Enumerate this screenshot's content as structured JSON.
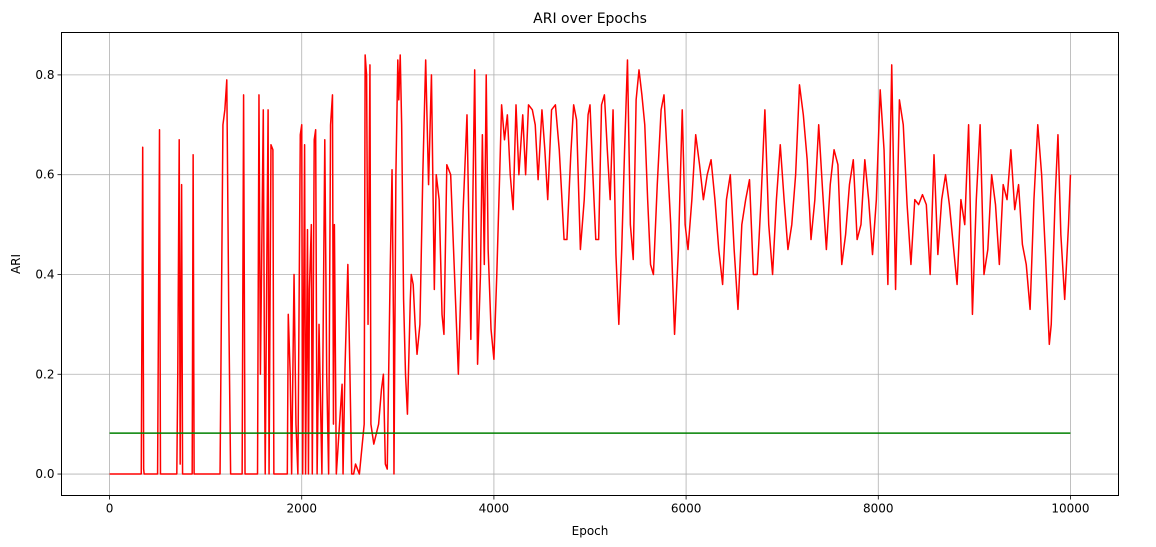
{
  "chart_data": {
    "type": "line",
    "title": "ARI over Epochs",
    "xlabel": "Epoch",
    "ylabel": "ARI",
    "xlim": [
      -500,
      10500
    ],
    "ylim": [
      -0.043,
      0.885
    ],
    "xticks": [
      0,
      2000,
      4000,
      6000,
      8000,
      10000
    ],
    "yticks": [
      0.0,
      0.2,
      0.4,
      0.6,
      0.8
    ],
    "xtick_labels": [
      "0",
      "2000",
      "4000",
      "6000",
      "8000",
      "10000"
    ],
    "ytick_labels": [
      "0.0",
      "0.2",
      "0.4",
      "0.6",
      "0.8"
    ],
    "grid": true,
    "legend": "none",
    "series": [
      {
        "color": "#ff0000",
        "points": [
          [
            0,
            0
          ],
          [
            330,
            0
          ],
          [
            345,
            0.655
          ],
          [
            355,
            0.01
          ],
          [
            360,
            0
          ],
          [
            500,
            0
          ],
          [
            520,
            0.69
          ],
          [
            530,
            0
          ],
          [
            700,
            0
          ],
          [
            710,
            0.2
          ],
          [
            725,
            0.67
          ],
          [
            735,
            0.02
          ],
          [
            750,
            0.58
          ],
          [
            760,
            0
          ],
          [
            860,
            0
          ],
          [
            870,
            0.64
          ],
          [
            880,
            0
          ],
          [
            1150,
            0
          ],
          [
            1180,
            0.7
          ],
          [
            1200,
            0.73
          ],
          [
            1220,
            0.79
          ],
          [
            1240,
            0.34
          ],
          [
            1260,
            0
          ],
          [
            1380,
            0
          ],
          [
            1395,
            0.76
          ],
          [
            1410,
            0
          ],
          [
            1540,
            0
          ],
          [
            1555,
            0.76
          ],
          [
            1570,
            0.2
          ],
          [
            1600,
            0.73
          ],
          [
            1610,
            0.3
          ],
          [
            1620,
            0
          ],
          [
            1640,
            0.5
          ],
          [
            1650,
            0.73
          ],
          [
            1660,
            0
          ],
          [
            1680,
            0.66
          ],
          [
            1700,
            0.65
          ],
          [
            1710,
            0
          ],
          [
            1850,
            0
          ],
          [
            1860,
            0.32
          ],
          [
            1880,
            0.2
          ],
          [
            1895,
            0
          ],
          [
            1920,
            0.4
          ],
          [
            1940,
            0.1
          ],
          [
            1960,
            0
          ],
          [
            1985,
            0.68
          ],
          [
            2000,
            0.7
          ],
          [
            2010,
            0
          ],
          [
            2030,
            0.66
          ],
          [
            2040,
            0
          ],
          [
            2060,
            0.49
          ],
          [
            2070,
            0
          ],
          [
            2080,
            0.37
          ],
          [
            2100,
            0.5
          ],
          [
            2110,
            0
          ],
          [
            2130,
            0.67
          ],
          [
            2145,
            0.69
          ],
          [
            2160,
            0
          ],
          [
            2180,
            0.3
          ],
          [
            2200,
            0.1
          ],
          [
            2210,
            0
          ],
          [
            2240,
            0.67
          ],
          [
            2260,
            0.2
          ],
          [
            2280,
            0
          ],
          [
            2300,
            0.7
          ],
          [
            2320,
            0.76
          ],
          [
            2330,
            0.1
          ],
          [
            2340,
            0.5
          ],
          [
            2360,
            0
          ],
          [
            2420,
            0.18
          ],
          [
            2430,
            0
          ],
          [
            2450,
            0.21
          ],
          [
            2480,
            0.42
          ],
          [
            2500,
            0.22
          ],
          [
            2520,
            0
          ],
          [
            2540,
            0
          ],
          [
            2560,
            0.02
          ],
          [
            2600,
            0
          ],
          [
            2650,
            0.1
          ],
          [
            2660,
            0.84
          ],
          [
            2675,
            0.8
          ],
          [
            2690,
            0.3
          ],
          [
            2710,
            0.82
          ],
          [
            2720,
            0.1
          ],
          [
            2750,
            0.06
          ],
          [
            2800,
            0.1
          ],
          [
            2830,
            0.17
          ],
          [
            2850,
            0.2
          ],
          [
            2870,
            0.02
          ],
          [
            2890,
            0.01
          ],
          [
            2920,
            0.4
          ],
          [
            2940,
            0.61
          ],
          [
            2955,
            0.3
          ],
          [
            2960,
            0
          ],
          [
            2980,
            0.6
          ],
          [
            3000,
            0.83
          ],
          [
            3010,
            0.75
          ],
          [
            3025,
            0.84
          ],
          [
            3040,
            0.7
          ],
          [
            3060,
            0.35
          ],
          [
            3080,
            0.2
          ],
          [
            3100,
            0.12
          ],
          [
            3130,
            0.35
          ],
          [
            3140,
            0.4
          ],
          [
            3160,
            0.38
          ],
          [
            3180,
            0.3
          ],
          [
            3200,
            0.24
          ],
          [
            3230,
            0.3
          ],
          [
            3260,
            0.6
          ],
          [
            3290,
            0.83
          ],
          [
            3320,
            0.58
          ],
          [
            3350,
            0.8
          ],
          [
            3380,
            0.37
          ],
          [
            3400,
            0.6
          ],
          [
            3430,
            0.55
          ],
          [
            3460,
            0.32
          ],
          [
            3480,
            0.28
          ],
          [
            3510,
            0.62
          ],
          [
            3550,
            0.6
          ],
          [
            3580,
            0.45
          ],
          [
            3630,
            0.2
          ],
          [
            3680,
            0.53
          ],
          [
            3720,
            0.72
          ],
          [
            3760,
            0.27
          ],
          [
            3800,
            0.81
          ],
          [
            3830,
            0.22
          ],
          [
            3860,
            0.4
          ],
          [
            3880,
            0.68
          ],
          [
            3900,
            0.42
          ],
          [
            3920,
            0.8
          ],
          [
            3940,
            0.45
          ],
          [
            3970,
            0.29
          ],
          [
            4000,
            0.23
          ],
          [
            4030,
            0.4
          ],
          [
            4060,
            0.6
          ],
          [
            4080,
            0.74
          ],
          [
            4110,
            0.67
          ],
          [
            4140,
            0.72
          ],
          [
            4170,
            0.6
          ],
          [
            4200,
            0.53
          ],
          [
            4230,
            0.74
          ],
          [
            4260,
            0.6
          ],
          [
            4300,
            0.72
          ],
          [
            4330,
            0.6
          ],
          [
            4360,
            0.74
          ],
          [
            4400,
            0.73
          ],
          [
            4430,
            0.7
          ],
          [
            4460,
            0.59
          ],
          [
            4500,
            0.73
          ],
          [
            4530,
            0.65
          ],
          [
            4560,
            0.55
          ],
          [
            4600,
            0.73
          ],
          [
            4640,
            0.74
          ],
          [
            4680,
            0.65
          ],
          [
            4700,
            0.58
          ],
          [
            4730,
            0.47
          ],
          [
            4760,
            0.47
          ],
          [
            4800,
            0.64
          ],
          [
            4830,
            0.74
          ],
          [
            4860,
            0.71
          ],
          [
            4900,
            0.45
          ],
          [
            4940,
            0.55
          ],
          [
            4980,
            0.72
          ],
          [
            5000,
            0.74
          ],
          [
            5030,
            0.6
          ],
          [
            5060,
            0.47
          ],
          [
            5090,
            0.47
          ],
          [
            5120,
            0.74
          ],
          [
            5150,
            0.76
          ],
          [
            5180,
            0.65
          ],
          [
            5210,
            0.55
          ],
          [
            5240,
            0.73
          ],
          [
            5270,
            0.44
          ],
          [
            5300,
            0.3
          ],
          [
            5330,
            0.45
          ],
          [
            5360,
            0.65
          ],
          [
            5390,
            0.83
          ],
          [
            5420,
            0.5
          ],
          [
            5450,
            0.43
          ],
          [
            5480,
            0.75
          ],
          [
            5510,
            0.81
          ],
          [
            5540,
            0.76
          ],
          [
            5570,
            0.7
          ],
          [
            5600,
            0.55
          ],
          [
            5630,
            0.42
          ],
          [
            5660,
            0.4
          ],
          [
            5700,
            0.58
          ],
          [
            5740,
            0.73
          ],
          [
            5770,
            0.76
          ],
          [
            5800,
            0.65
          ],
          [
            5840,
            0.5
          ],
          [
            5880,
            0.28
          ],
          [
            5920,
            0.45
          ],
          [
            5960,
            0.73
          ],
          [
            5990,
            0.5
          ],
          [
            6020,
            0.45
          ],
          [
            6060,
            0.55
          ],
          [
            6100,
            0.68
          ],
          [
            6140,
            0.62
          ],
          [
            6180,
            0.55
          ],
          [
            6220,
            0.6
          ],
          [
            6260,
            0.63
          ],
          [
            6300,
            0.55
          ],
          [
            6340,
            0.45
          ],
          [
            6380,
            0.38
          ],
          [
            6420,
            0.55
          ],
          [
            6460,
            0.6
          ],
          [
            6500,
            0.45
          ],
          [
            6540,
            0.33
          ],
          [
            6580,
            0.5
          ],
          [
            6620,
            0.55
          ],
          [
            6660,
            0.59
          ],
          [
            6700,
            0.4
          ],
          [
            6740,
            0.4
          ],
          [
            6780,
            0.55
          ],
          [
            6820,
            0.73
          ],
          [
            6860,
            0.5
          ],
          [
            6900,
            0.4
          ],
          [
            6940,
            0.55
          ],
          [
            6980,
            0.66
          ],
          [
            7020,
            0.55
          ],
          [
            7060,
            0.45
          ],
          [
            7100,
            0.5
          ],
          [
            7140,
            0.6
          ],
          [
            7180,
            0.78
          ],
          [
            7220,
            0.72
          ],
          [
            7260,
            0.63
          ],
          [
            7300,
            0.47
          ],
          [
            7340,
            0.55
          ],
          [
            7380,
            0.7
          ],
          [
            7420,
            0.57
          ],
          [
            7460,
            0.45
          ],
          [
            7500,
            0.58
          ],
          [
            7540,
            0.65
          ],
          [
            7580,
            0.62
          ],
          [
            7620,
            0.42
          ],
          [
            7660,
            0.48
          ],
          [
            7700,
            0.58
          ],
          [
            7740,
            0.63
          ],
          [
            7780,
            0.47
          ],
          [
            7820,
            0.5
          ],
          [
            7860,
            0.63
          ],
          [
            7900,
            0.55
          ],
          [
            7940,
            0.44
          ],
          [
            7980,
            0.55
          ],
          [
            8020,
            0.77
          ],
          [
            8060,
            0.65
          ],
          [
            8100,
            0.38
          ],
          [
            8140,
            0.82
          ],
          [
            8180,
            0.37
          ],
          [
            8220,
            0.75
          ],
          [
            8260,
            0.7
          ],
          [
            8300,
            0.54
          ],
          [
            8340,
            0.42
          ],
          [
            8380,
            0.55
          ],
          [
            8420,
            0.54
          ],
          [
            8460,
            0.56
          ],
          [
            8500,
            0.54
          ],
          [
            8540,
            0.4
          ],
          [
            8580,
            0.64
          ],
          [
            8620,
            0.44
          ],
          [
            8660,
            0.55
          ],
          [
            8700,
            0.6
          ],
          [
            8740,
            0.54
          ],
          [
            8780,
            0.46
          ],
          [
            8820,
            0.38
          ],
          [
            8860,
            0.55
          ],
          [
            8900,
            0.5
          ],
          [
            8940,
            0.7
          ],
          [
            8980,
            0.32
          ],
          [
            9020,
            0.55
          ],
          [
            9060,
            0.7
          ],
          [
            9100,
            0.4
          ],
          [
            9140,
            0.45
          ],
          [
            9180,
            0.6
          ],
          [
            9220,
            0.54
          ],
          [
            9260,
            0.42
          ],
          [
            9300,
            0.58
          ],
          [
            9340,
            0.55
          ],
          [
            9380,
            0.65
          ],
          [
            9420,
            0.53
          ],
          [
            9460,
            0.58
          ],
          [
            9500,
            0.46
          ],
          [
            9540,
            0.42
          ],
          [
            9580,
            0.33
          ],
          [
            9620,
            0.55
          ],
          [
            9660,
            0.7
          ],
          [
            9700,
            0.6
          ],
          [
            9740,
            0.44
          ],
          [
            9780,
            0.26
          ],
          [
            9800,
            0.3
          ],
          [
            9840,
            0.55
          ],
          [
            9870,
            0.68
          ],
          [
            9900,
            0.48
          ],
          [
            9940,
            0.35
          ],
          [
            9980,
            0.5
          ],
          [
            10000,
            0.6
          ]
        ]
      },
      {
        "color": "#008000",
        "points": [
          [
            0,
            0.082
          ],
          [
            10000,
            0.082
          ]
        ]
      }
    ]
  }
}
